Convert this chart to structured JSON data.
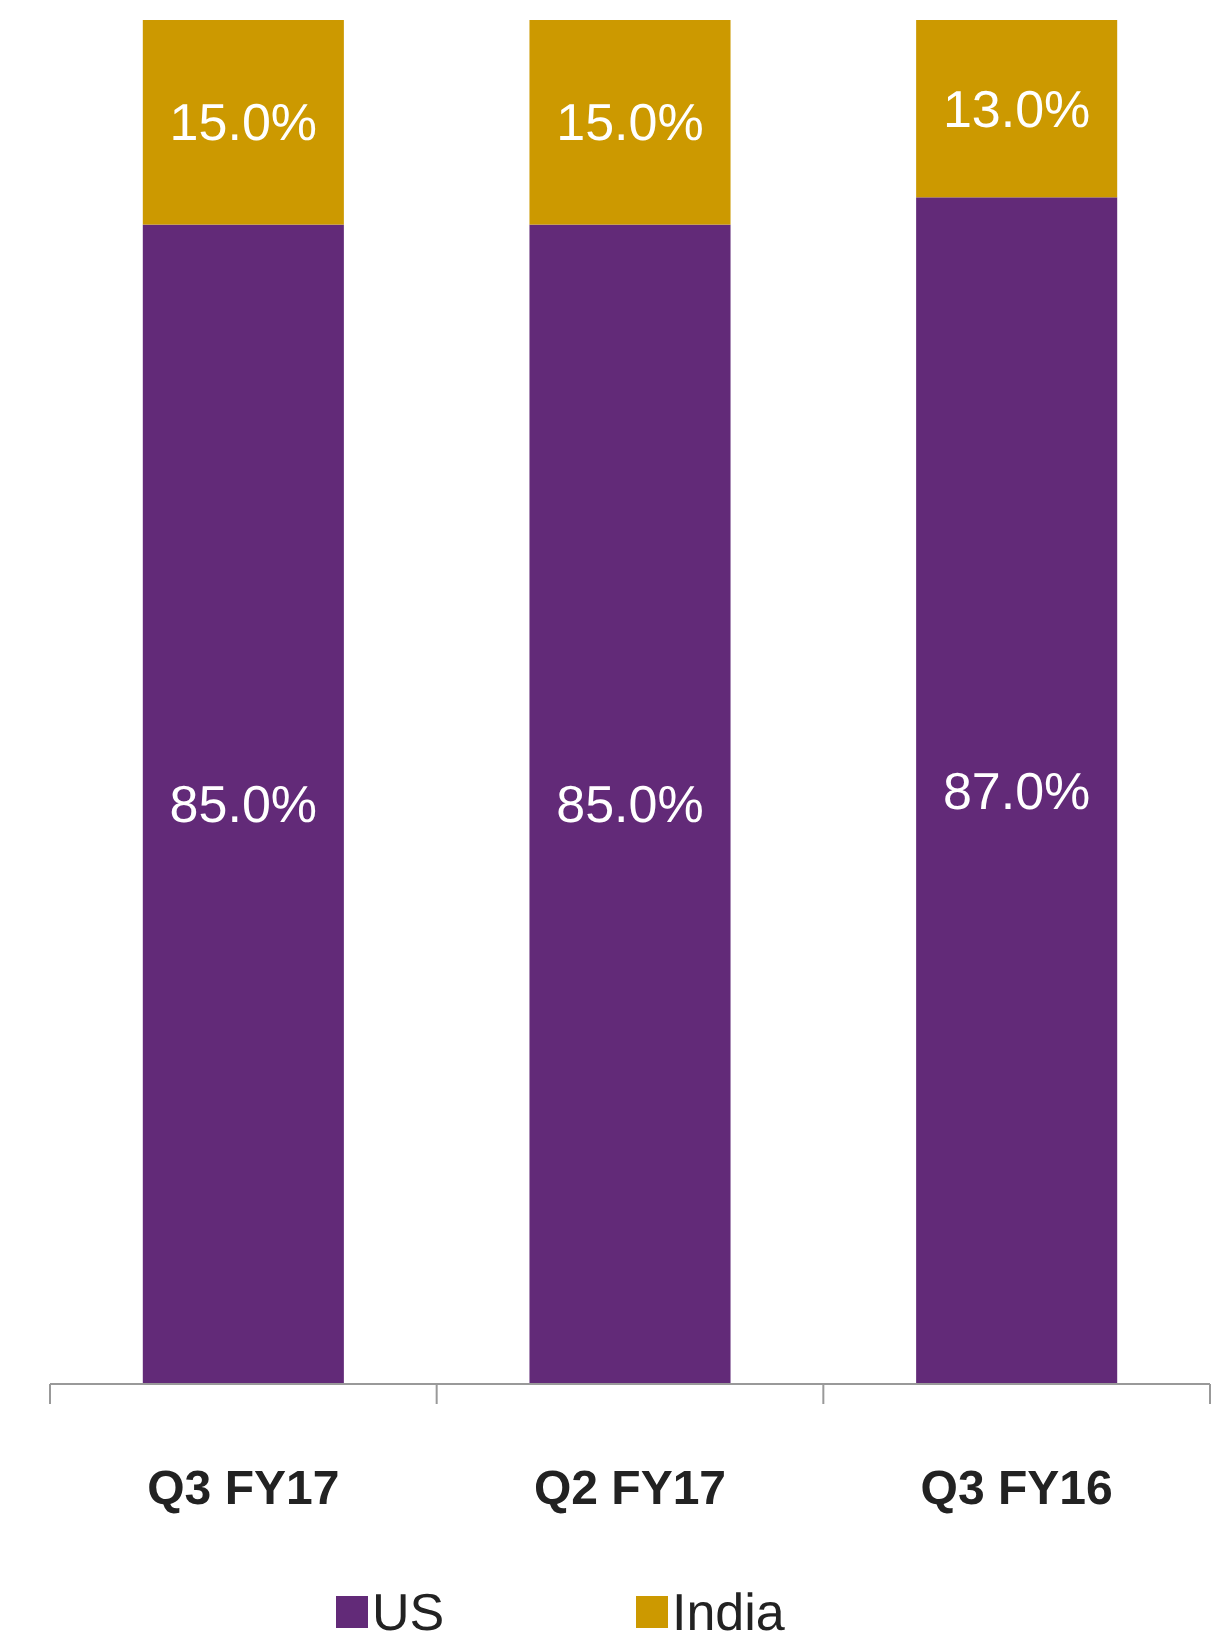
{
  "chart_data": {
    "type": "bar",
    "stacked": true,
    "categories": [
      "Q3 FY17",
      "Q2 FY17",
      "Q3 FY16"
    ],
    "series": [
      {
        "name": "US",
        "color": "#622a78",
        "values": [
          85.0,
          85.0,
          87.0
        ],
        "value_labels": [
          "85.0%",
          "85.0%",
          "87.0%"
        ]
      },
      {
        "name": "India",
        "color": "#cc9900",
        "values": [
          15.0,
          15.0,
          13.0
        ],
        "value_labels": [
          "15.0%",
          "15.0%",
          "13.0%"
        ]
      }
    ],
    "tick_labels": "x",
    "legend": "bottom"
  }
}
